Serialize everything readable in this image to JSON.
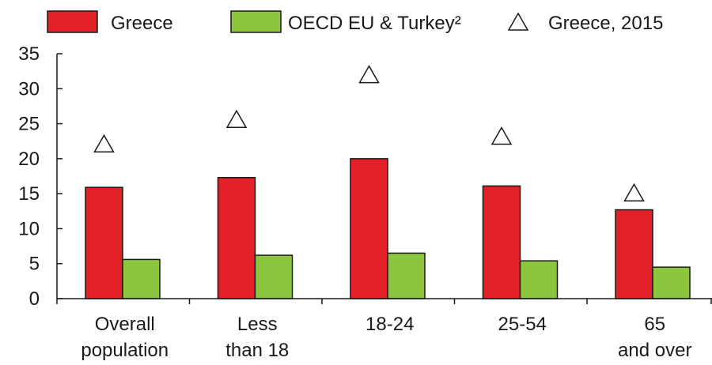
{
  "chart_data": {
    "type": "bar",
    "categories": [
      [
        "Overall",
        "population"
      ],
      [
        "Less",
        "than 18"
      ],
      [
        "18-24"
      ],
      [
        "25-54"
      ],
      [
        "65",
        "and over"
      ]
    ],
    "series": [
      {
        "name": "Greece",
        "values": [
          15.9,
          17.3,
          20.0,
          16.1,
          12.7
        ],
        "color": "#e32027",
        "kind": "bar"
      },
      {
        "name": "OECD EU & Turkey²",
        "values": [
          5.6,
          6.2,
          6.5,
          5.4,
          4.5
        ],
        "color": "#8cc63e",
        "kind": "bar"
      },
      {
        "name": "Greece, 2015",
        "values": [
          22.1,
          25.6,
          32.0,
          23.2,
          15.1
        ],
        "color": "#ffffff",
        "kind": "triangle-marker"
      }
    ],
    "yticks": [
      0,
      5,
      10,
      15,
      20,
      25,
      30,
      35
    ],
    "ylim": [
      0,
      35
    ],
    "legend_position": "top",
    "grid": false
  }
}
